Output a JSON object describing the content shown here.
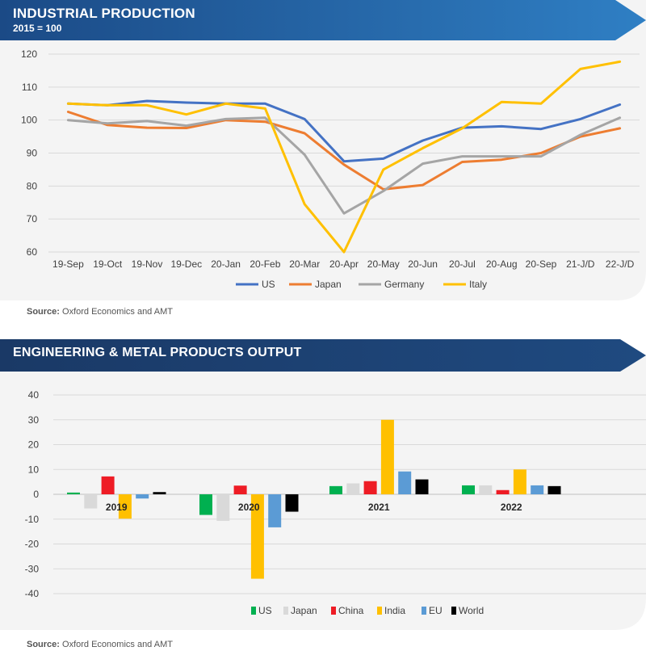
{
  "panel1": {
    "title": "INDUSTRIAL PRODUCTION",
    "subtitle": "2015 = 100",
    "source_label": "Source:",
    "source_text": " Oxford Economics and AMT"
  },
  "panel2": {
    "title": "ENGINEERING & METAL PRODUCTS OUTPUT",
    "source_label": "Source:",
    "source_text": " Oxford Economics and AMT"
  },
  "colors": {
    "banner_dark": "#1b3f73",
    "banner_light": "#2f74b8",
    "panel_bg": "#f4f4f4"
  },
  "chart_data": [
    {
      "type": "line",
      "title": "INDUSTRIAL PRODUCTION",
      "subtitle": "2015 = 100",
      "categories": [
        "19-Sep",
        "19-Oct",
        "19-Nov",
        "19-Dec",
        "20-Jan",
        "20-Feb",
        "20-Mar",
        "20-Apr",
        "20-May",
        "20-Jun",
        "20-Jul",
        "20-Aug",
        "20-Sep",
        "21-J/D",
        "22-J/D"
      ],
      "ylim": [
        60,
        120
      ],
      "yticks": [
        60,
        70,
        80,
        90,
        100,
        110,
        120
      ],
      "grid": true,
      "legend": "bottom",
      "series": [
        {
          "name": "US",
          "color": "#4472c4",
          "values": [
            105,
            104.5,
            105.8,
            105.3,
            105,
            105,
            100.3,
            87.5,
            88.3,
            93.8,
            97.7,
            98.1,
            97.3,
            100.3,
            104.7
          ]
        },
        {
          "name": "Japan",
          "color": "#ed7d31",
          "values": [
            102.5,
            98.5,
            97.7,
            97.6,
            100,
            99.5,
            96,
            86.5,
            79,
            80.3,
            87.3,
            88,
            90,
            95,
            97.5
          ]
        },
        {
          "name": "Germany",
          "color": "#a5a5a5",
          "values": [
            100,
            99,
            99.7,
            98.3,
            100.3,
            100.7,
            89.5,
            71.7,
            78.5,
            86.8,
            89,
            89,
            89,
            95.5,
            100.7
          ]
        },
        {
          "name": "Italy",
          "color": "#ffc000",
          "values": [
            105,
            104.5,
            104.5,
            101.7,
            105,
            103.5,
            74.5,
            60,
            85,
            91.5,
            97.5,
            105.5,
            105,
            115.5,
            117.7
          ]
        }
      ]
    },
    {
      "type": "bar",
      "title": "ENGINEERING & METAL PRODUCTS OUTPUT",
      "categories": [
        "2019",
        "2020",
        "2021",
        "2022"
      ],
      "ylim": [
        -40,
        40
      ],
      "yticks": [
        -40,
        -30,
        -20,
        -10,
        0,
        10,
        20,
        30,
        40
      ],
      "grid": true,
      "legend": "bottom",
      "series": [
        {
          "name": "US",
          "color": "#00b050",
          "values": [
            0.7,
            -8.3,
            3.3,
            3.6
          ]
        },
        {
          "name": "Japan",
          "color": "#d9d9d9",
          "values": [
            -5.7,
            -10.7,
            4.4,
            3.6
          ]
        },
        {
          "name": "China",
          "color": "#ee1c25",
          "values": [
            7.2,
            3.5,
            5.3,
            1.7
          ]
        },
        {
          "name": "India",
          "color": "#ffc000",
          "values": [
            -9.8,
            -34,
            30,
            10
          ]
        },
        {
          "name": "EU",
          "color": "#5b9bd5",
          "values": [
            -1.7,
            -13.3,
            9.2,
            3.6
          ]
        },
        {
          "name": "World",
          "color": "#000000",
          "values": [
            0.9,
            -7,
            6,
            3.3
          ]
        }
      ]
    }
  ]
}
